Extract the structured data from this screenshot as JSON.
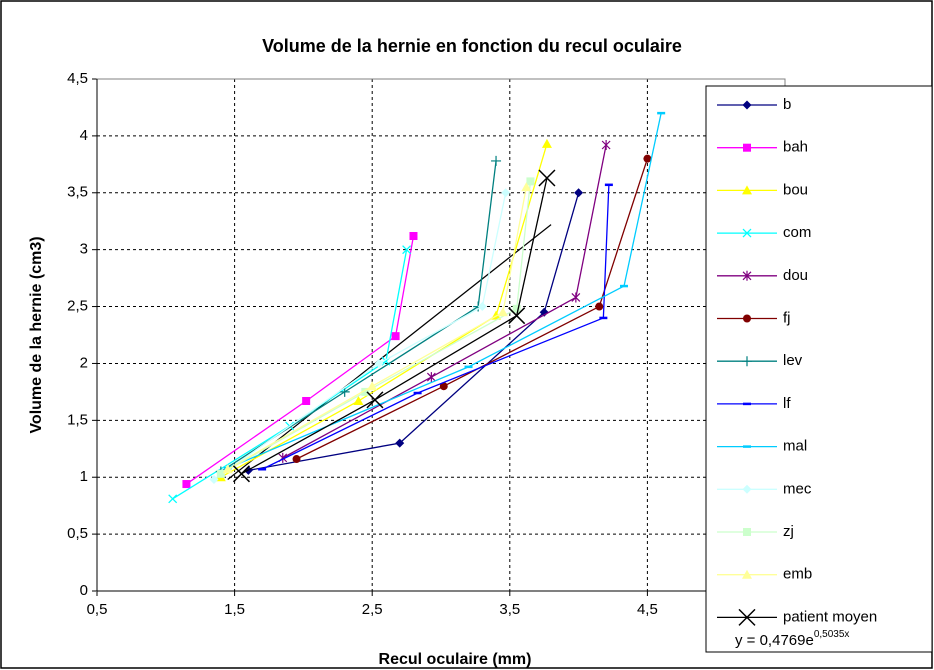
{
  "chart_data": {
    "type": "line",
    "title": "Volume de la hernie en fonction du recul oculaire",
    "x_label": "Recul oculaire  (mm)",
    "y_label": "Volume de la hernie (cm3)",
    "xlim": [
      0.5,
      5.5
    ],
    "xticks": [
      {
        "value": 0.5,
        "label": "0,5"
      },
      {
        "value": 1.5,
        "label": "1,5"
      },
      {
        "value": 2.5,
        "label": "2,5"
      },
      {
        "value": 3.5,
        "label": "3,5"
      },
      {
        "value": 4.5,
        "label": "4,5"
      }
    ],
    "ylim": [
      0,
      4.5
    ],
    "yticks": [
      0,
      {
        "value": 0.5,
        "label": "0,5"
      },
      1,
      {
        "value": 1.5,
        "label": "1,5"
      },
      2,
      {
        "value": 2.5,
        "label": "2,5"
      },
      3,
      {
        "value": 3.5,
        "label": "3,5"
      },
      4,
      {
        "value": 4.5,
        "label": "4,5"
      }
    ],
    "grid": true,
    "legend": "right",
    "trendline": {
      "label": "y = 0,4769e",
      "exponent": "0,5035x",
      "color": "#000000",
      "x": [
        1.45,
        3.8
      ],
      "values": [
        0.98,
        3.22
      ]
    },
    "series": [
      {
        "name": "b",
        "color": "#000080",
        "marker": "diamond",
        "x": [
          1.6,
          2.7,
          3.75,
          4.0
        ],
        "values": [
          1.06,
          1.3,
          2.45,
          3.5
        ]
      },
      {
        "name": "bah",
        "color": "#FF00FF",
        "marker": "square",
        "x": [
          1.15,
          2.02,
          2.67,
          2.8
        ],
        "values": [
          0.94,
          1.67,
          2.24,
          3.12
        ]
      },
      {
        "name": "bou",
        "color": "#FFFF00",
        "marker": "triangle",
        "x": [
          1.4,
          2.4,
          3.4,
          3.77
        ],
        "values": [
          1.0,
          1.67,
          2.42,
          3.93
        ]
      },
      {
        "name": "com",
        "color": "#00FFFF",
        "marker": "x",
        "x": [
          1.05,
          1.9,
          2.6,
          2.75
        ],
        "values": [
          0.81,
          1.45,
          2.02,
          3.0
        ]
      },
      {
        "name": "dou",
        "color": "#800080",
        "marker": "star",
        "x": [
          1.85,
          2.93,
          3.98,
          4.2
        ],
        "values": [
          1.17,
          1.88,
          2.58,
          3.92
        ]
      },
      {
        "name": "fj",
        "color": "#800000",
        "marker": "circle",
        "x": [
          1.95,
          3.02,
          4.15,
          4.5
        ],
        "values": [
          1.16,
          1.8,
          2.5,
          3.8
        ]
      },
      {
        "name": "lev",
        "color": "#008080",
        "marker": "plus",
        "x": [
          1.4,
          2.3,
          3.27,
          3.4
        ],
        "values": [
          1.05,
          1.75,
          2.5,
          3.78
        ]
      },
      {
        "name": "lf",
        "color": "#0000FF",
        "marker": "dash",
        "x": [
          1.7,
          2.83,
          4.18,
          4.22
        ],
        "values": [
          1.07,
          1.74,
          2.4,
          3.57
        ]
      },
      {
        "name": "mal",
        "color": "#00CCFF",
        "marker": "dash",
        "x": [
          1.45,
          3.2,
          4.33,
          4.6
        ],
        "values": [
          1.08,
          1.97,
          2.68,
          4.2
        ]
      },
      {
        "name": "mec",
        "color": "#CCFFFF",
        "marker": "diamond",
        "x": [
          1.35,
          2.55,
          3.3,
          3.47
        ],
        "values": [
          0.98,
          2.0,
          2.5,
          3.5
        ]
      },
      {
        "name": "zj",
        "color": "#CCFFCC",
        "marker": "square",
        "x": [
          1.4,
          2.45,
          3.55,
          3.65
        ],
        "values": [
          1.03,
          1.75,
          2.48,
          3.6
        ]
      },
      {
        "name": "emb",
        "color": "#FFFF99",
        "marker": "triangle",
        "x": [
          1.45,
          2.5,
          3.45,
          3.62
        ],
        "values": [
          1.07,
          1.8,
          2.45,
          3.55
        ]
      },
      {
        "name": "patient moyen",
        "color": "#000000",
        "marker": "bigx",
        "x": [
          1.55,
          2.52,
          3.55,
          3.77
        ],
        "values": [
          1.03,
          1.68,
          2.42,
          3.63
        ]
      }
    ]
  }
}
